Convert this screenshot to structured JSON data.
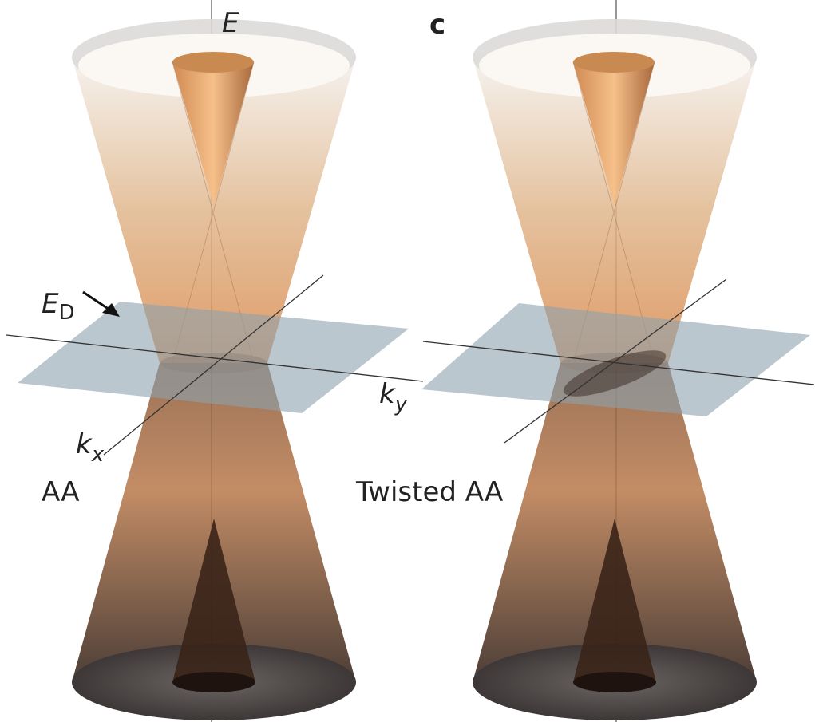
{
  "axes": {
    "energy": "E",
    "ky": {
      "label": "k",
      "subscript": "y"
    },
    "kx": {
      "label": "k",
      "subscript": "x"
    }
  },
  "panel_label": "c",
  "dirac_plane": {
    "label": "E",
    "subscript": "D"
  },
  "panels": [
    {
      "label": "AA"
    },
    {
      "label": "Twisted AA"
    }
  ]
}
